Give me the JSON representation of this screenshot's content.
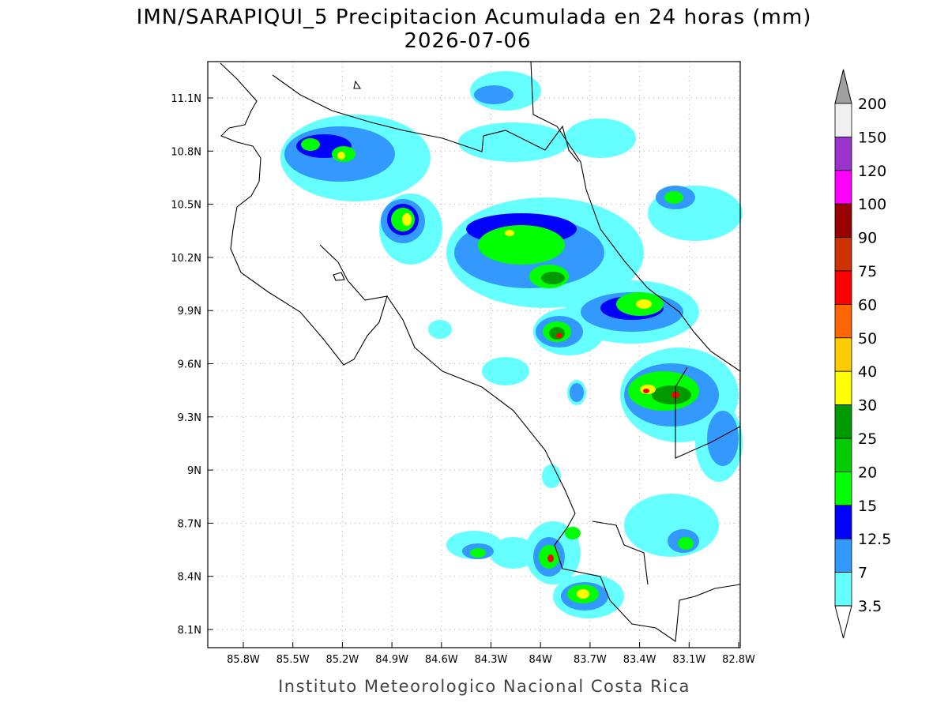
{
  "title": "IMN/SARAPIQUI_5 Precipitacion Acumulada en 24 horas (mm)",
  "subtitle": "2026-07-06",
  "lat_ticks": [
    "11.1N",
    "10.8N",
    "10.5N",
    "10.2N",
    "9.9N",
    "9.6N",
    "9.3N",
    "9N",
    "8.7N",
    "8.4N",
    "8.1N"
  ],
  "lon_ticks": [
    "85.8W",
    "85.5W",
    "85.2W",
    "84.9W",
    "84.6W",
    "84.3W",
    "84W",
    "83.7W",
    "83.4W",
    "83.1W",
    "82.8W"
  ],
  "colorbar": {
    "labels": [
      "200",
      "150",
      "120",
      "100",
      "90",
      "75",
      "60",
      "50",
      "40",
      "30",
      "25",
      "20",
      "15",
      "12.5",
      "7",
      "3.5"
    ],
    "colors": [
      "#f0f0f0",
      "#9933cc",
      "#ff00ff",
      "#990000",
      "#cc3300",
      "#ff0000",
      "#ff6600",
      "#ffcc00",
      "#ffff00",
      "#009900",
      "#00cc00",
      "#00ff00",
      "#0000ff",
      "#3399ff",
      "#66ffff"
    ],
    "over_color": "#a0a0a0",
    "under_color": "#ffffff"
  },
  "footer": "Instituto Meteorologico Nacional Costa Rica"
}
